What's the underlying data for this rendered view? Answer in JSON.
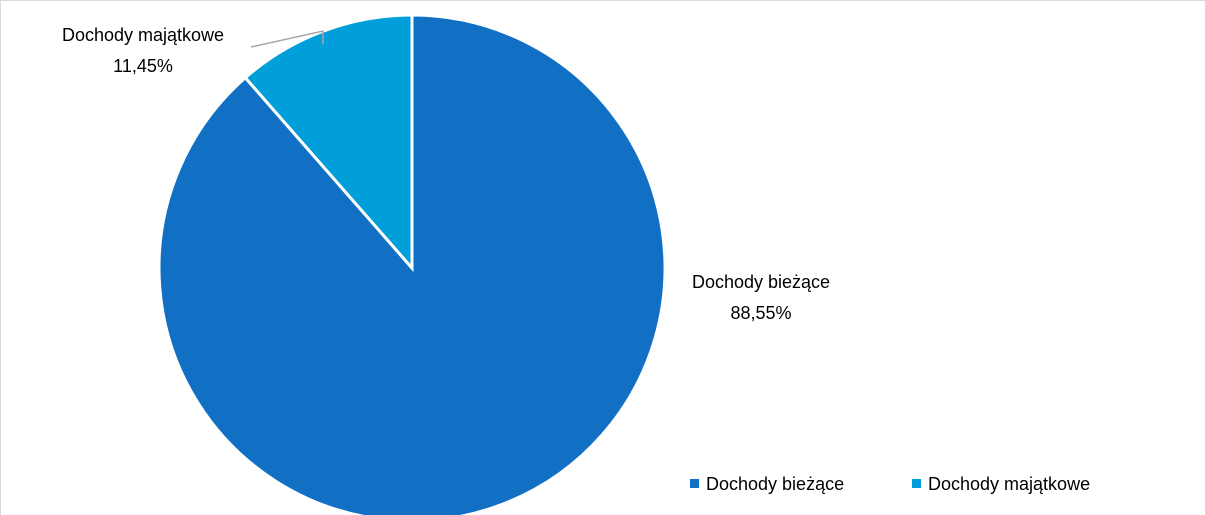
{
  "chart_data": {
    "type": "pie",
    "title": "",
    "categories": [
      "Dochody bieżące",
      "Dochody majątkowe"
    ],
    "values": [
      88.55,
      11.45
    ],
    "value_labels": [
      "88,55%",
      "11,45%"
    ],
    "colors": [
      "#1170c4",
      "#009fd9"
    ],
    "slice_border_color": "#ffffff",
    "start_angle_deg": 0,
    "direction": "clockwise",
    "legend": {
      "position": "bottom-right",
      "entries": [
        "Dochody bieżące",
        "Dochody majątkowe"
      ]
    },
    "leader_line_color": "#a6a6a6"
  }
}
